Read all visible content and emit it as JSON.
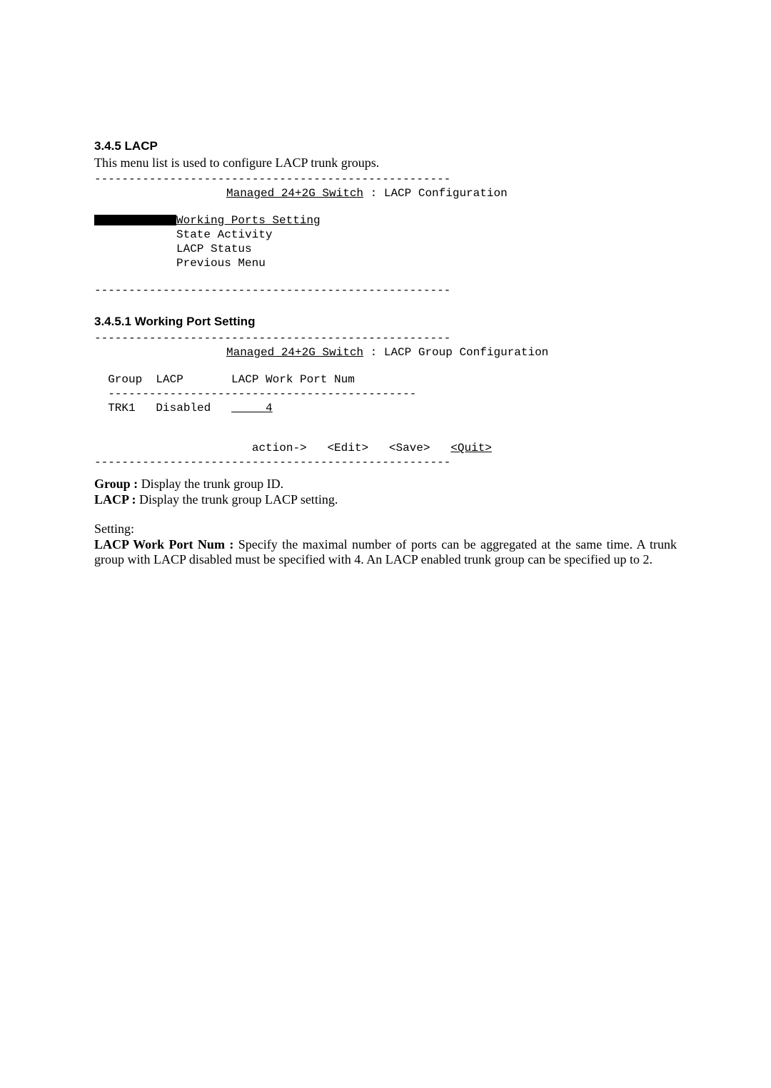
{
  "section1": {
    "heading": "3.4.5 LACP",
    "intro": "This menu list is used to configure LACP trunk groups.",
    "divider": "----------------------------------------------------",
    "screen_title_prefix": "Managed 24+2G Switch",
    "screen_title_suffix": " : LACP Configuration",
    "menu": {
      "selected": "Working Ports Setting",
      "item2": "State Activity",
      "item3": "LACP Status",
      "item4": "Previous Menu"
    }
  },
  "section2": {
    "heading": "3.4.5.1 Working Port Setting",
    "divider": "----------------------------------------------------",
    "screen_title_prefix": "Managed 24+2G Switch",
    "screen_title_suffix": " : LACP Group Configuration",
    "table": {
      "header": "  Group  LACP       LACP Work Port Num",
      "divider": "  ---------------------------------------------",
      "row_prefix": "  TRK1   Disabled   ",
      "row_value": "     4"
    },
    "actions": {
      "prefix": "                       action->   <Edit>   <Save>   ",
      "quit": "<Quit>"
    }
  },
  "definitions": {
    "group_label": "Group : ",
    "group_desc": "Display the trunk group ID.",
    "lacp_label": "LACP : ",
    "lacp_desc": "Display the trunk group LACP setting."
  },
  "setting": {
    "heading": "Setting:",
    "work_port_label": "LACP Work Port Num : ",
    "work_port_desc": "Specify the maximal  number of ports can be aggregated at the same time. A trunk group with LACP disabled must be specified with 4. An LACP enabled trunk group can be specified up to 2."
  }
}
